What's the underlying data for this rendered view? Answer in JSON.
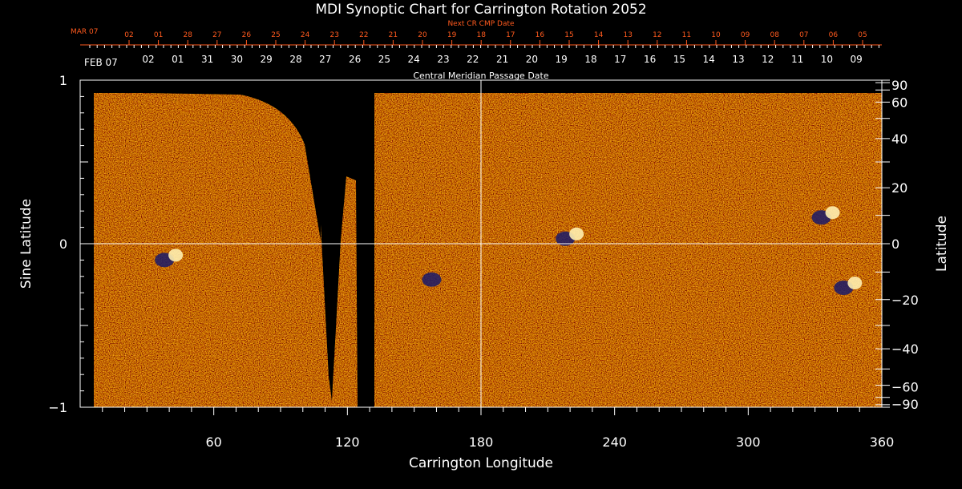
{
  "chart_data": {
    "type": "heatmap",
    "title": "MDI Synoptic Chart for Carrington Rotation 2052",
    "xlabel": "Carrington Longitude",
    "ylabel_left": "Sine Latitude",
    "ylabel_right": "Latitude",
    "xlim": [
      0,
      360
    ],
    "ylim": [
      -1,
      1
    ],
    "x_ticks": [
      60,
      120,
      180,
      240,
      300,
      360
    ],
    "y_ticks_left": [
      {
        "value": 1,
        "label": "1"
      },
      {
        "value": 0,
        "label": "0"
      },
      {
        "value": -1,
        "label": "−1"
      }
    ],
    "y_ticks_right": [
      {
        "deg": 90,
        "label": "90"
      },
      {
        "deg": 60,
        "label": "60"
      },
      {
        "deg": 40,
        "label": "40"
      },
      {
        "deg": 20,
        "label": "20"
      },
      {
        "deg": 0,
        "label": "0"
      },
      {
        "deg": -20,
        "label": "−20"
      },
      {
        "deg": -40,
        "label": "−40"
      },
      {
        "deg": -60,
        "label": "−60"
      },
      {
        "deg": -90,
        "label": "−90"
      }
    ],
    "grid": {
      "vertical_at_longitude": 180,
      "horizontal_at_sine_latitude": 0,
      "color": "#ffffff"
    },
    "top_axis_cmp_date": {
      "caption": "Central Meridian Passage Date",
      "start_label": "FEB 07",
      "labels": [
        "02",
        "01",
        "31",
        "30",
        "29",
        "28",
        "27",
        "26",
        "25",
        "24",
        "23",
        "22",
        "21",
        "20",
        "19",
        "18",
        "17",
        "16",
        "15",
        "14",
        "13",
        "12",
        "11",
        "10",
        "09"
      ]
    },
    "top_axis_next_cr": {
      "caption": "Next CR CMP Date",
      "start_label": "MAR 07",
      "color": "#ff5a1e",
      "labels": [
        "02",
        "01",
        "28",
        "27",
        "26",
        "25",
        "24",
        "23",
        "22",
        "21",
        "20",
        "19",
        "18",
        "17",
        "16",
        "15",
        "14",
        "13",
        "12",
        "11",
        "10",
        "09",
        "08",
        "07",
        "06",
        "05"
      ]
    },
    "data_gaps": [
      {
        "longitude_range": [
          0,
          7
        ],
        "sine_latitude_range": [
          -1,
          1
        ]
      },
      {
        "longitude_range": [
          113,
          131
        ],
        "sine_latitude_range": [
          -1,
          1
        ]
      }
    ],
    "colors": {
      "background": "#ff4a0a",
      "positive": "#fff0b0",
      "negative": "#1a1a6a",
      "no_data": "#000000"
    },
    "active_regions": [
      {
        "longitude": 40,
        "sine_latitude": -0.08,
        "polarity": "mixed"
      },
      {
        "longitude": 220,
        "sine_latitude": 0.05,
        "polarity": "mixed"
      },
      {
        "longitude": 160,
        "sine_latitude": -0.2,
        "polarity": "negative"
      },
      {
        "longitude": 335,
        "sine_latitude": 0.18,
        "polarity": "mixed"
      },
      {
        "longitude": 345,
        "sine_latitude": -0.25,
        "polarity": "mixed"
      }
    ]
  }
}
